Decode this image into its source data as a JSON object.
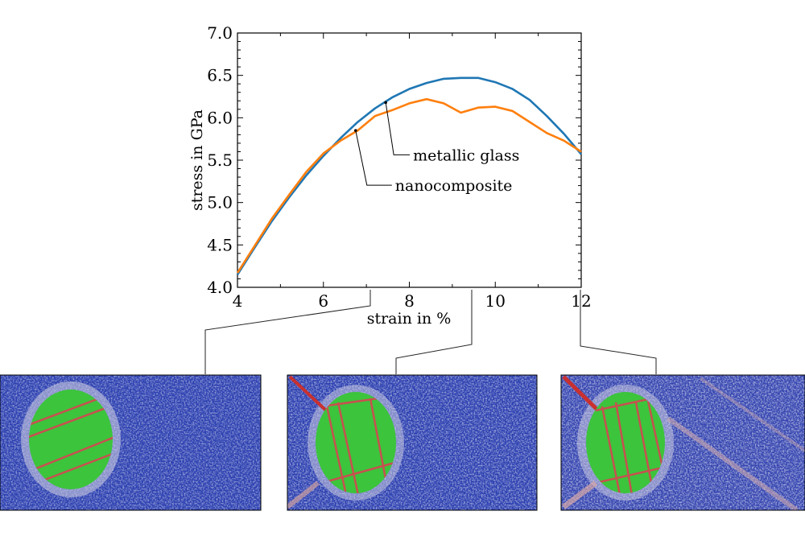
{
  "chart_data": {
    "type": "line",
    "xlabel": "strain in %",
    "ylabel": "stress in GPa",
    "xlim": [
      4,
      12
    ],
    "ylim": [
      4.0,
      7.0
    ],
    "x_ticks": [
      4,
      6,
      8,
      10,
      12
    ],
    "x_tick_labels": [
      "4",
      "6",
      "8",
      "10",
      "12"
    ],
    "y_ticks": [
      4.0,
      4.5,
      5.0,
      5.5,
      6.0,
      6.5,
      7.0
    ],
    "y_tick_labels": [
      "4.0",
      "4.5",
      "5.0",
      "5.5",
      "6.0",
      "6.5",
      "7.0"
    ],
    "grid": false,
    "series": [
      {
        "name": "metallic glass",
        "color": "#1f77b4",
        "x": [
          4.0,
          4.4,
          4.8,
          5.2,
          5.6,
          6.0,
          6.4,
          6.8,
          7.2,
          7.6,
          8.0,
          8.4,
          8.8,
          9.2,
          9.6,
          10.0,
          10.4,
          10.8,
          11.2,
          11.6,
          12.0
        ],
        "y": [
          4.15,
          4.47,
          4.78,
          5.06,
          5.32,
          5.55,
          5.76,
          5.95,
          6.11,
          6.24,
          6.34,
          6.41,
          6.46,
          6.47,
          6.47,
          6.42,
          6.34,
          6.21,
          6.02,
          5.81,
          5.57
        ]
      },
      {
        "name": "nanocomposite",
        "color": "#ff7f0e",
        "x": [
          4.0,
          4.4,
          4.8,
          5.2,
          5.6,
          6.0,
          6.4,
          6.8,
          7.2,
          7.6,
          8.0,
          8.4,
          8.8,
          9.2,
          9.6,
          10.0,
          10.4,
          10.8,
          11.2,
          11.6,
          12.0
        ],
        "y": [
          4.17,
          4.49,
          4.81,
          5.09,
          5.36,
          5.58,
          5.73,
          5.85,
          6.02,
          6.09,
          6.17,
          6.22,
          6.17,
          6.06,
          6.12,
          6.13,
          6.08,
          5.95,
          5.82,
          5.73,
          5.6
        ]
      }
    ],
    "annotations": [
      {
        "text": "metallic glass",
        "x": 7.45,
        "y": 6.18
      },
      {
        "text": "nanocomposite",
        "x": 6.75,
        "y": 5.85
      }
    ],
    "snapshot_strains": [
      7.0,
      9.3,
      12.0
    ]
  },
  "snapshots": [
    {
      "strain": 7.0,
      "colors": {
        "matrix": "#2b3fb0",
        "crystal": "#3cc43c",
        "shear": "#c85050"
      }
    },
    {
      "strain": 9.3,
      "colors": {
        "matrix": "#2b3fb0",
        "crystal": "#3cc43c",
        "shear": "#c85050"
      }
    },
    {
      "strain": 12.0,
      "colors": {
        "matrix": "#2b3fb0",
        "crystal": "#3cc43c",
        "shear": "#c85050"
      }
    }
  ]
}
